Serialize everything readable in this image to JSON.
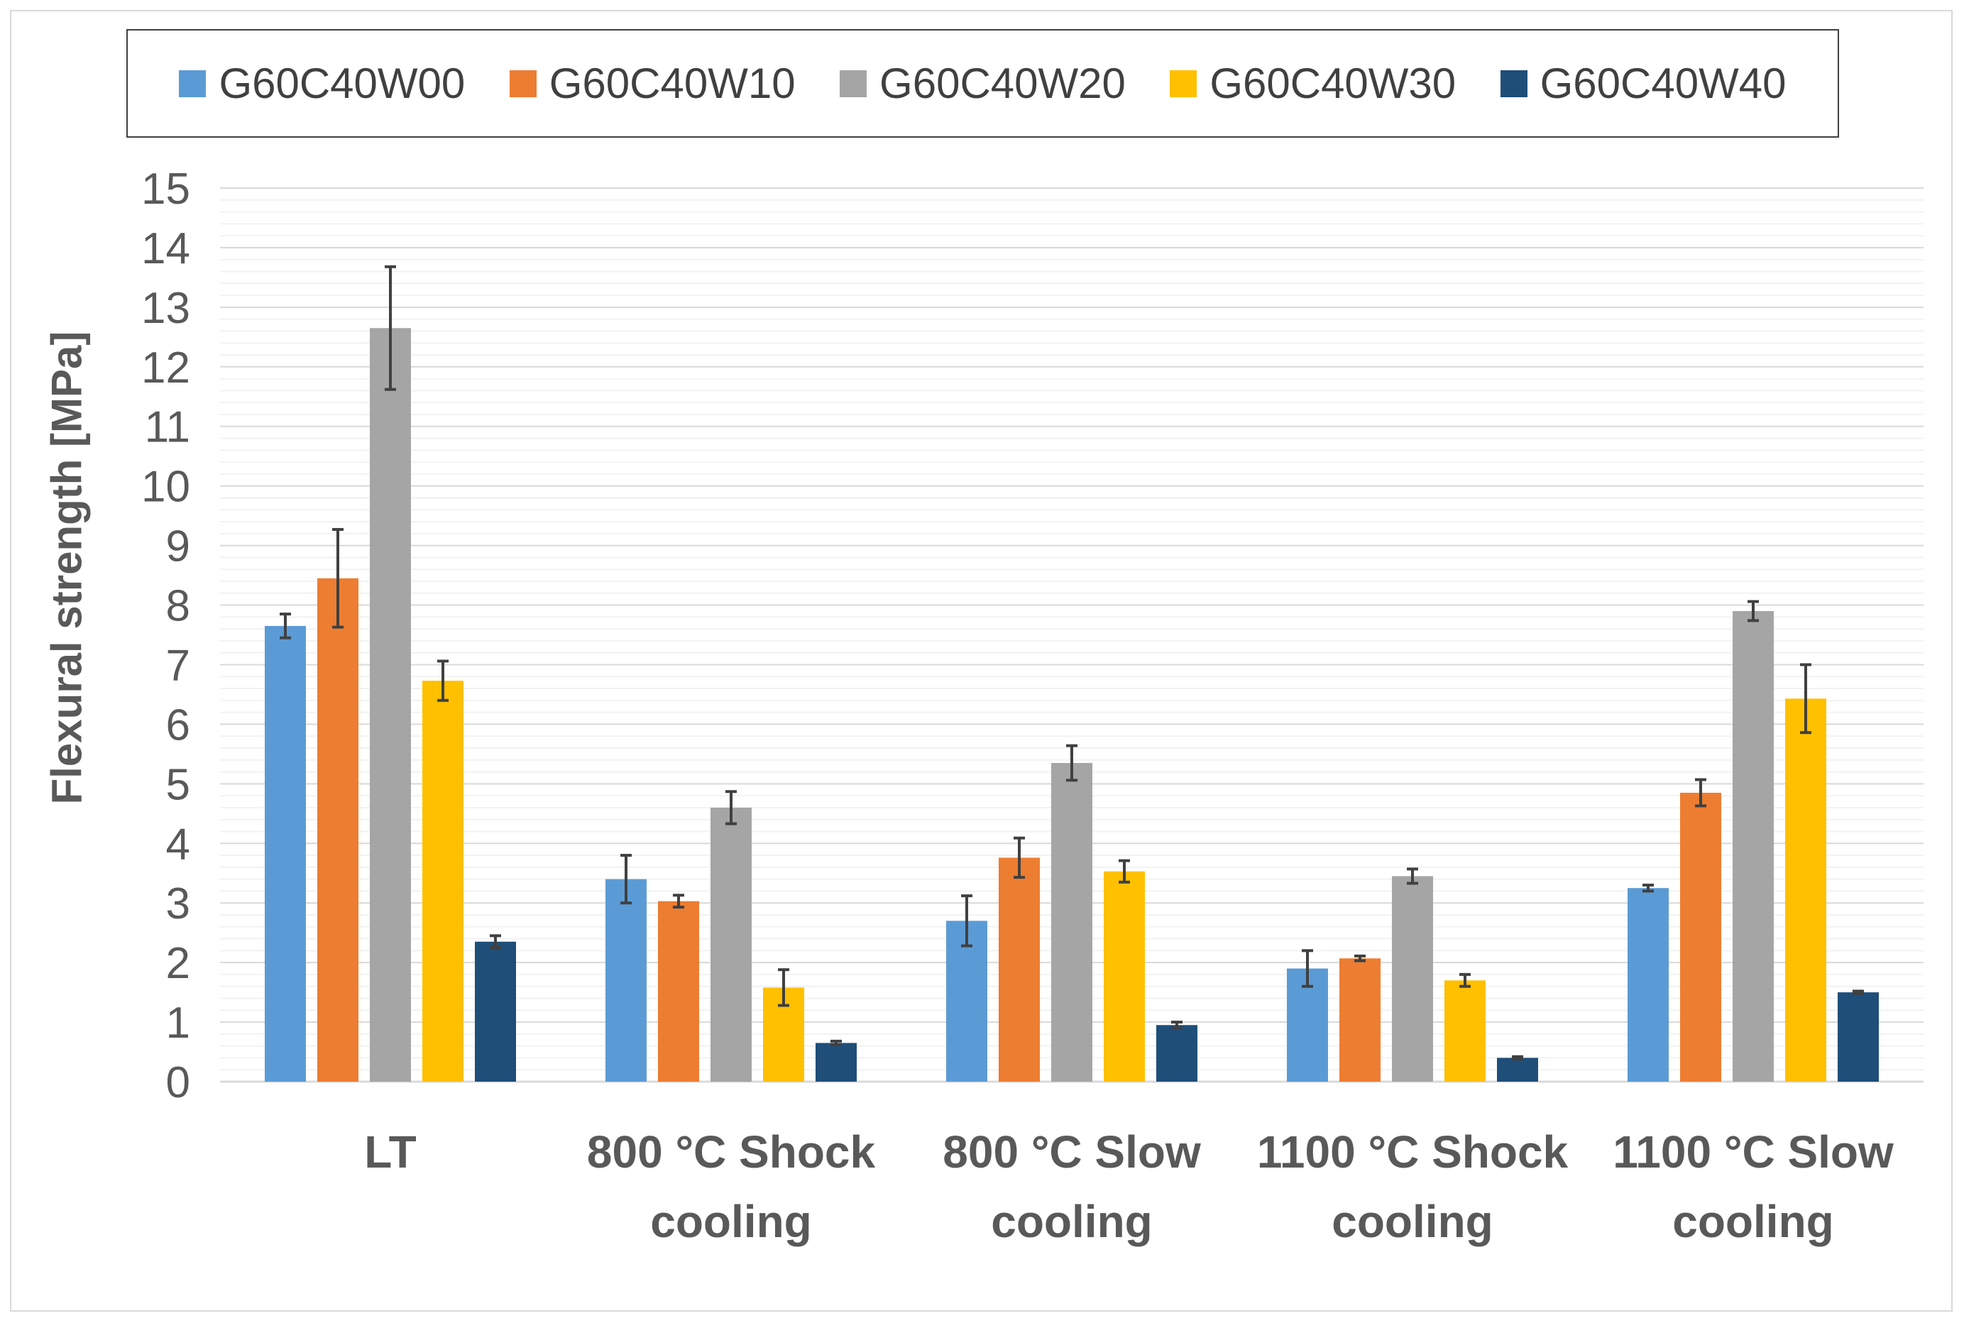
{
  "chart_data": {
    "type": "bar",
    "title": "",
    "xlabel": "",
    "ylabel": "Flexural strength [MPa]",
    "ylim": [
      0,
      15
    ],
    "yticks": [
      "0",
      "1",
      "2",
      "3",
      "4",
      "5",
      "6",
      "7",
      "8",
      "9",
      "10",
      "11",
      "12",
      "13",
      "14",
      "15"
    ],
    "categories": [
      [
        "LT"
      ],
      [
        "800 °C Shock",
        "cooling"
      ],
      [
        "800 °C Slow",
        "cooling"
      ],
      [
        "1100 °C Shock",
        "cooling"
      ],
      [
        "1100 °C Slow",
        "cooling"
      ]
    ],
    "series": [
      {
        "name": "G60C40W00",
        "color": "#5b9bd5",
        "values": [
          7.65,
          3.4,
          2.7,
          1.9,
          3.25
        ],
        "errors": [
          0.2,
          0.4,
          0.42,
          0.3,
          0.05
        ]
      },
      {
        "name": "G60C40W10",
        "color": "#ed7d31",
        "values": [
          8.45,
          3.03,
          3.76,
          2.07,
          4.85
        ],
        "errors": [
          0.82,
          0.1,
          0.33,
          0.04,
          0.22
        ]
      },
      {
        "name": "G60C40W20",
        "color": "#a5a5a5",
        "values": [
          12.65,
          4.6,
          5.35,
          3.45,
          7.9
        ],
        "errors": [
          1.03,
          0.27,
          0.29,
          0.12,
          0.16
        ]
      },
      {
        "name": "G60C40W30",
        "color": "#ffc000",
        "values": [
          6.73,
          1.58,
          3.53,
          1.7,
          6.43
        ],
        "errors": [
          0.33,
          0.3,
          0.18,
          0.1,
          0.57
        ]
      },
      {
        "name": "G60C40W40",
        "color": "#1f4e79",
        "values": [
          2.35,
          0.65,
          0.95,
          0.4,
          1.5
        ],
        "errors": [
          0.1,
          0.03,
          0.05,
          0.02,
          0.02
        ]
      }
    ],
    "grid": true,
    "legend_position": "top"
  }
}
